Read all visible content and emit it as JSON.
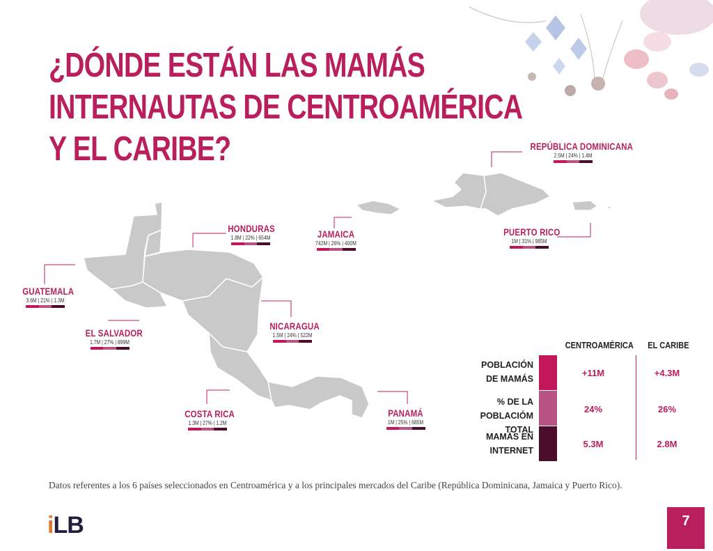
{
  "title": {
    "line1": "¿DÓNDE ESTÁN LAS MAMÁS",
    "line2": "INTERNAUTAS DE CENTROAMÉRICA",
    "line3": "Y EL CARIBE?"
  },
  "countries": {
    "republica_dominicana": {
      "name": "REPÚBLICA DOMINICANA",
      "stats": "2.5M | 24% | 1.4M"
    },
    "honduras": {
      "name": "HONDURAS",
      "stats": "1.8M | 22% | 654M"
    },
    "jamaica": {
      "name": "JAMAICA",
      "stats": "742M | 26% | 400M"
    },
    "puerto_rico": {
      "name": "PUERTO RICO",
      "stats": "1M | 31% | 985M"
    },
    "guatemala": {
      "name": "GUATEMALA",
      "stats": "3.6M | 21% | 1.3M"
    },
    "el_salvador": {
      "name": "EL SALVADOR",
      "stats": "1.7M | 27% | 899M"
    },
    "nicaragua": {
      "name": "NICARAGUA",
      "stats": "1.5M | 24% | 522M"
    },
    "costa_rica": {
      "name": "COSTA RICA",
      "stats": "1.3M | 27% | 1.2M"
    },
    "panama": {
      "name": "PANAMÁ",
      "stats": "1M | 25% | 685M"
    }
  },
  "table": {
    "col1": "CENTROAMÉRICA",
    "col2": "EL CARIBE",
    "rows": [
      {
        "label": "POBLACIÓN\nDE MAMÁS",
        "centroamerica": "+11M",
        "caribe": "+4.3M",
        "color": "#c2185b"
      },
      {
        "label": "% DE LA\nPOBLACIÓM TOTAL",
        "centroamerica": "24%",
        "caribe": "26%",
        "color": "#b85485"
      },
      {
        "label": "MAMÁS EN\nINTERNET",
        "centroamerica": "5.3M",
        "caribe": "2.8M",
        "color": "#4a0d2a"
      }
    ]
  },
  "note": "Datos referentes a los 6 países seleccionados en Centroamérica y a los principales mercados del Caribe (República Dominicana, Jamaica y Puerto Rico).",
  "logo": {
    "i": "i",
    "rest": "LB"
  },
  "page_number": "7",
  "colors": {
    "accent": "#b81f5c",
    "land": "#c9c9c9",
    "border": "#ffffff"
  }
}
